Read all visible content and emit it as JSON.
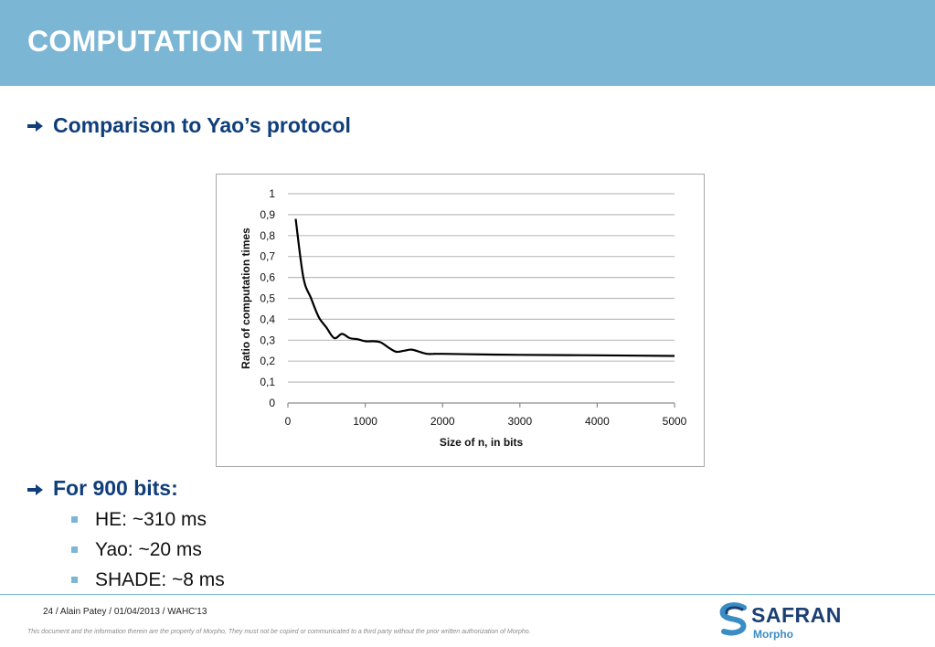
{
  "slide": {
    "title": "COMPUTATION TIME",
    "section1": "Comparison to Yao’s protocol",
    "section2": "For 900 bits:",
    "bullets": [
      "HE: ~310 ms",
      "Yao: ~20 ms",
      "SHADE: ~8 ms"
    ],
    "footer": "24 /   Alain Patey / 01/04/2013 / WAHC'13",
    "disclaimer": "This document and the information therein are the property of Morpho, They must not be copied or communicated to a third party without the prior written authorization of Morpho.",
    "logo": {
      "name": "SAFRAN",
      "sub": "Morpho"
    },
    "colors": {
      "header": "#7bb6d5",
      "heading": "#0f3e7a",
      "bullet": "#7bb6d5",
      "line": "#000000"
    }
  },
  "chart_data": {
    "type": "line",
    "title": "",
    "xlabel": "Size of n, in bits",
    "ylabel": "Ratio of computation times",
    "xlim": [
      0,
      5000
    ],
    "ylim": [
      0,
      1
    ],
    "x_ticks": [
      "0",
      "1000",
      "2000",
      "3000",
      "4000",
      "5000"
    ],
    "y_ticks": [
      "0",
      "0,1",
      "0,2",
      "0,3",
      "0,4",
      "0,5",
      "0,6",
      "0,7",
      "0,8",
      "0,9",
      "1"
    ],
    "grid": "horizontal",
    "legend": "none",
    "series": [
      {
        "x": [
          100,
          200,
          300,
          400,
          500,
          600,
          700,
          800,
          900,
          1000,
          1100,
          1200,
          1300,
          1400,
          1500,
          1600,
          1700,
          1800,
          1900,
          2000,
          3000,
          4000,
          5000
        ],
        "y": [
          0.88,
          0.6,
          0.5,
          0.41,
          0.36,
          0.31,
          0.33,
          0.31,
          0.305,
          0.295,
          0.295,
          0.29,
          0.265,
          0.245,
          0.25,
          0.255,
          0.245,
          0.235,
          0.235,
          0.235,
          0.23,
          0.228,
          0.225
        ]
      }
    ]
  }
}
